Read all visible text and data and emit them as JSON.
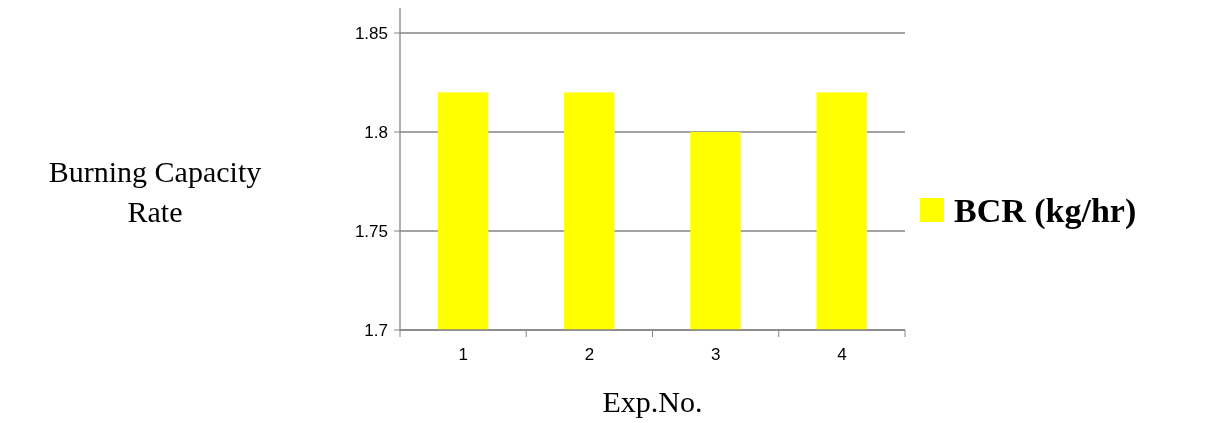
{
  "chart_data": {
    "type": "bar",
    "xlabel": "Exp.No.",
    "ylabel": "Burning Capacity Rate",
    "categories": [
      "1",
      "2",
      "3",
      "4"
    ],
    "series": [
      {
        "name": "BCR (kg/hr)",
        "color": "#ffff00",
        "values": [
          1.82,
          1.82,
          1.8,
          1.82
        ]
      }
    ],
    "ylim": [
      1.7,
      1.85
    ],
    "yticks": [
      1.7,
      1.75,
      1.8,
      1.85
    ],
    "grid": "y",
    "legend": "right"
  }
}
